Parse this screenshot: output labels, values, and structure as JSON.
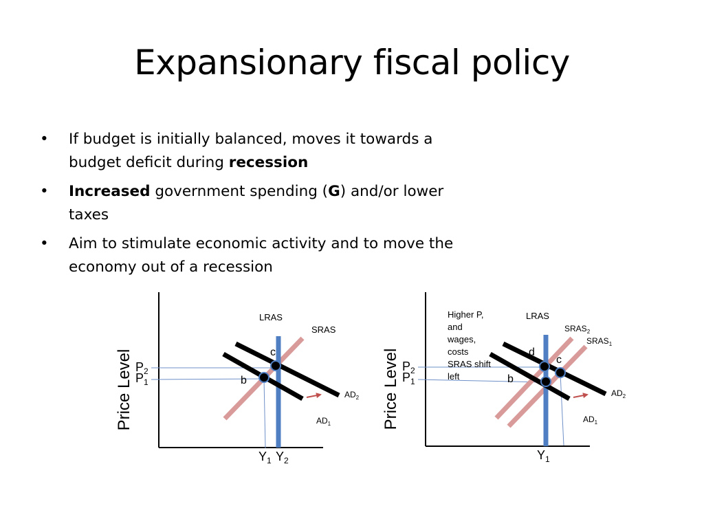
{
  "slide": {
    "title": "Expansionary fiscal policy"
  },
  "bullets": [
    {
      "parts": [
        {
          "text": "If budget is initially balanced, moves it towards a budget deficit during ",
          "bold": false
        },
        {
          "text": "recession",
          "bold": true
        }
      ]
    },
    {
      "parts": [
        {
          "text": "Increased",
          "bold": true
        },
        {
          "text": " government spending (",
          "bold": false
        },
        {
          "text": "G",
          "bold": true
        },
        {
          "text": ") and/or lower taxes",
          "bold": false
        }
      ]
    },
    {
      "parts": [
        {
          "text": "Aim to stimulate economic activity and to move the economy out of a recession",
          "bold": false
        }
      ]
    }
  ],
  "diagram1": {
    "ylabel": "Price Level",
    "lras_label": "LRAS",
    "sras_label": "SRAS",
    "p2": {
      "base": "P",
      "sub": "2"
    },
    "p1": {
      "base": "P",
      "sub": "1"
    },
    "point_c": "c",
    "point_b": "b",
    "ad2": {
      "base": "AD",
      "sub": "2"
    },
    "ad1": {
      "base": "AD",
      "sub": "1"
    },
    "y1": {
      "base": "Y",
      "sub": "1"
    },
    "y2": {
      "base": "Y",
      "sub": "2"
    }
  },
  "diagram2": {
    "ylabel": "Price Level",
    "note_lines": [
      "Higher P,",
      "and",
      "wages,",
      "costs",
      "SRAS shift",
      "left"
    ],
    "lras_label": "LRAS",
    "sras2": {
      "base": "SRAS",
      "sub": "2"
    },
    "sras1": {
      "base": "SRAS",
      "sub": "1"
    },
    "p2": {
      "base": "P",
      "sub": "2"
    },
    "p1": {
      "base": "P",
      "sub": "1"
    },
    "point_d": "d",
    "point_c": "c",
    "point_b": "b",
    "ad2": {
      "base": "AD",
      "sub": "2"
    },
    "ad1": {
      "base": "AD",
      "sub": "1"
    },
    "y1": {
      "base": "Y",
      "sub": "1"
    }
  },
  "colors": {
    "lras": "#4f7fc2",
    "sras": "#d99a9a",
    "ad": "#000000",
    "arrow": "#c0504d",
    "guide": "#6f90c9",
    "axis": "#000000"
  }
}
